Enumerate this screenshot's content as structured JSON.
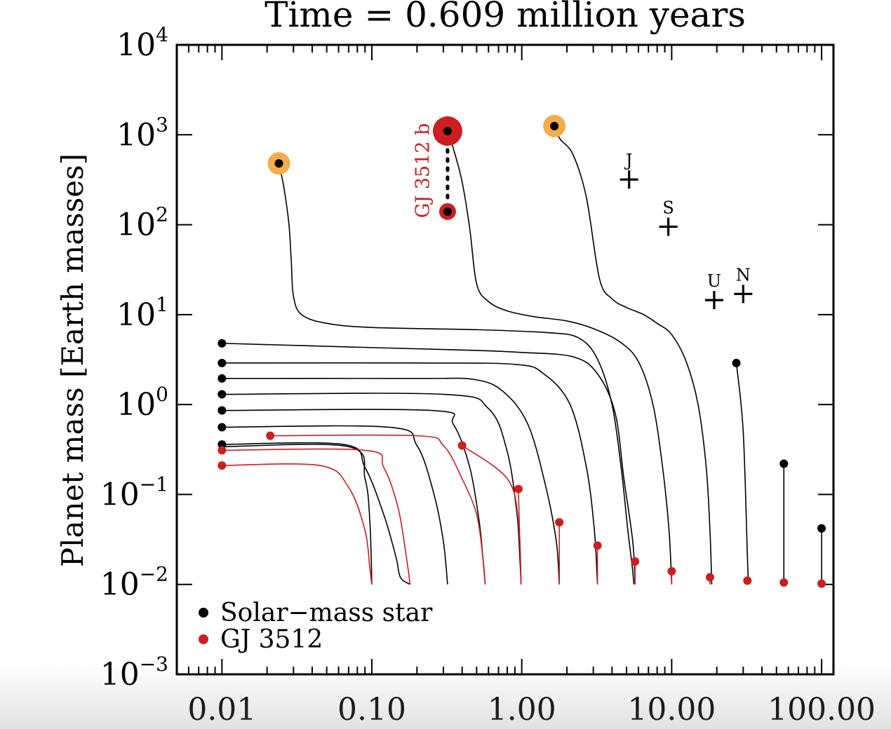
{
  "chart_data": {
    "type": "scatter",
    "title": "Time =  0.609 million years",
    "xlabel": "",
    "ylabel": "Planet mass [Earth masses]",
    "xscale": "log",
    "yscale": "log",
    "xlim": [
      0.005,
      120
    ],
    "ylim": [
      0.001,
      10000
    ],
    "x_ticks": [
      0.01,
      0.1,
      1,
      10,
      100
    ],
    "x_tick_labels": [
      "0.01",
      "0.10",
      "1.00",
      "10.00",
      "100.00"
    ],
    "y_ticks": [
      0.001,
      0.01,
      0.1,
      1,
      10,
      100,
      1000,
      10000
    ],
    "y_tick_labels": [
      {
        "base": "10",
        "exp": "−3"
      },
      {
        "base": "10",
        "exp": "−2"
      },
      {
        "base": "10",
        "exp": "−1"
      },
      {
        "base": "10",
        "exp": "0"
      },
      {
        "base": "10",
        "exp": "1"
      },
      {
        "base": "10",
        "exp": "2"
      },
      {
        "base": "10",
        "exp": "3"
      },
      {
        "base": "10",
        "exp": "4"
      }
    ],
    "legend": {
      "placement": "bottom-left",
      "entries": [
        {
          "label": "Solar−mass star",
          "color": "#000000"
        },
        {
          "label": "GJ 3512",
          "color": "#cc1f1f"
        }
      ]
    },
    "colors": {
      "solar": "#000000",
      "gj": "#cc1f1f",
      "halo_orange": "#f5ac4a",
      "halo_red": "#cc1f1f"
    },
    "series": [
      {
        "name": "Solar−mass star",
        "points": [
          {
            "x": 0.024,
            "y": 480,
            "halo": "orange"
          },
          {
            "x": 0.32,
            "y": 1100,
            "halo": "red"
          },
          {
            "x": 1.65,
            "y": 1250,
            "halo": "orange"
          },
          {
            "x": 0.32,
            "y": 140,
            "halo": "red-small"
          },
          {
            "x": 0.01,
            "y": 4.8
          },
          {
            "x": 0.01,
            "y": 2.9
          },
          {
            "x": 0.01,
            "y": 1.95
          },
          {
            "x": 0.01,
            "y": 1.3
          },
          {
            "x": 0.01,
            "y": 0.86
          },
          {
            "x": 0.01,
            "y": 0.56
          },
          {
            "x": 0.01,
            "y": 0.36
          },
          {
            "x": 27,
            "y": 2.9
          },
          {
            "x": 56,
            "y": 0.22
          },
          {
            "x": 100,
            "y": 0.042
          }
        ]
      },
      {
        "name": "GJ 3512",
        "points": [
          {
            "x": 0.021,
            "y": 0.45
          },
          {
            "x": 0.01,
            "y": 0.31
          },
          {
            "x": 0.01,
            "y": 0.21
          },
          {
            "x": 0.4,
            "y": 0.35
          },
          {
            "x": 0.95,
            "y": 0.115
          },
          {
            "x": 1.78,
            "y": 0.049
          },
          {
            "x": 3.2,
            "y": 0.027
          },
          {
            "x": 5.7,
            "y": 0.018
          },
          {
            "x": 10,
            "y": 0.014
          },
          {
            "x": 18,
            "y": 0.012
          },
          {
            "x": 32,
            "y": 0.011
          },
          {
            "x": 56,
            "y": 0.0105
          },
          {
            "x": 100,
            "y": 0.0102
          }
        ]
      }
    ],
    "tracks": [
      {
        "color": "black",
        "points": [
          [
            0.024,
            480
          ],
          [
            0.026,
            250
          ],
          [
            0.028,
            100
          ],
          [
            0.029,
            40
          ],
          [
            0.03,
            16
          ],
          [
            0.034,
            10
          ],
          [
            0.05,
            8
          ],
          [
            0.1,
            7.2
          ],
          [
            0.5,
            6.8
          ],
          [
            1.5,
            6.3
          ],
          [
            2.4,
            5.5
          ],
          [
            3.2,
            3.2
          ],
          [
            4,
            1
          ],
          [
            4.6,
            0.2
          ],
          [
            5.1,
            0.04
          ],
          [
            5.45,
            0.016
          ],
          [
            5.6,
            0.01
          ]
        ]
      },
      {
        "color": "black",
        "points": [
          [
            0.32,
            1100
          ],
          [
            0.35,
            700
          ],
          [
            0.4,
            300
          ],
          [
            0.45,
            90
          ],
          [
            0.5,
            22
          ],
          [
            0.6,
            14
          ],
          [
            0.8,
            11
          ],
          [
            1.2,
            9.5
          ],
          [
            2,
            8.5
          ],
          [
            3,
            7
          ],
          [
            4.5,
            5
          ],
          [
            6,
            3
          ],
          [
            7.5,
            1
          ],
          [
            8.7,
            0.2
          ],
          [
            9.6,
            0.04
          ],
          [
            10,
            0.01
          ]
        ]
      },
      {
        "color": "black",
        "points": [
          [
            1.65,
            1250
          ],
          [
            1.8,
            900
          ],
          [
            2.2,
            600
          ],
          [
            2.7,
            200
          ],
          [
            3.3,
            25
          ],
          [
            4,
            15
          ],
          [
            5,
            12
          ],
          [
            6.5,
            10
          ],
          [
            8,
            8
          ],
          [
            10,
            6
          ],
          [
            12.5,
            3
          ],
          [
            15,
            1
          ],
          [
            17,
            0.2
          ],
          [
            18,
            0.04
          ],
          [
            18.5,
            0.01
          ]
        ]
      },
      {
        "color": "black",
        "points": [
          [
            0.01,
            4.8
          ],
          [
            0.1,
            4.3
          ],
          [
            0.5,
            4.0
          ],
          [
            1,
            3.8
          ],
          [
            2.2,
            3.4
          ],
          [
            3.2,
            2.2
          ],
          [
            4.2,
            0.8
          ],
          [
            4.8,
            0.15
          ],
          [
            5.5,
            0.03
          ],
          [
            5.7,
            0.01
          ]
        ]
      },
      {
        "color": "black",
        "points": [
          [
            0.01,
            2.9
          ],
          [
            0.2,
            2.9
          ],
          [
            0.9,
            2.8
          ],
          [
            1.4,
            2.2
          ],
          [
            2.1,
            1
          ],
          [
            2.7,
            0.2
          ],
          [
            3.05,
            0.04
          ],
          [
            3.2,
            0.01
          ]
        ]
      },
      {
        "color": "black",
        "points": [
          [
            0.01,
            1.95
          ],
          [
            0.2,
            1.95
          ],
          [
            0.48,
            1.9
          ],
          [
            0.75,
            1.4
          ],
          [
            1.1,
            0.6
          ],
          [
            1.45,
            0.12
          ],
          [
            1.7,
            0.03
          ],
          [
            1.78,
            0.01
          ]
        ]
      },
      {
        "color": "black",
        "points": [
          [
            0.01,
            1.3
          ],
          [
            0.3,
            1.3
          ],
          [
            0.6,
            0.9
          ],
          [
            0.8,
            0.3
          ],
          [
            0.93,
            0.06
          ],
          [
            0.97,
            0.02
          ],
          [
            0.99,
            0.01
          ]
        ]
      },
      {
        "color": "black",
        "points": [
          [
            0.01,
            0.86
          ],
          [
            0.25,
            0.86
          ],
          [
            0.35,
            0.6
          ],
          [
            0.45,
            0.2
          ],
          [
            0.52,
            0.05
          ],
          [
            0.55,
            0.02
          ],
          [
            0.57,
            0.01
          ]
        ]
      },
      {
        "color": "black",
        "points": [
          [
            0.01,
            0.56
          ],
          [
            0.13,
            0.56
          ],
          [
            0.2,
            0.35
          ],
          [
            0.26,
            0.1
          ],
          [
            0.3,
            0.03
          ],
          [
            0.32,
            0.01
          ]
        ]
      },
      {
        "color": "black",
        "points": [
          [
            0.01,
            0.36
          ],
          [
            0.065,
            0.36
          ],
          [
            0.09,
            0.2
          ],
          [
            0.12,
            0.06
          ],
          [
            0.145,
            0.02
          ],
          [
            0.155,
            0.012
          ],
          [
            0.18,
            0.01
          ]
        ]
      },
      {
        "color": "black",
        "points": [
          [
            0.01,
            0.34
          ],
          [
            0.07,
            0.34
          ],
          [
            0.09,
            0.15
          ],
          [
            0.097,
            0.05
          ],
          [
            0.1,
            0.01
          ]
        ]
      },
      {
        "color": "black",
        "points": [
          [
            27,
            2.9
          ],
          [
            30,
            0.5
          ],
          [
            32,
            0.02
          ],
          [
            32.5,
            0.01
          ]
        ]
      },
      {
        "color": "black",
        "points": [
          [
            56,
            0.22
          ],
          [
            56,
            0.0105
          ]
        ]
      },
      {
        "color": "black",
        "points": [
          [
            100,
            0.042
          ],
          [
            100,
            0.0102
          ]
        ]
      },
      {
        "color": "red",
        "points": [
          [
            0.021,
            0.45
          ],
          [
            0.2,
            0.45
          ],
          [
            0.3,
            0.35
          ],
          [
            0.4,
            0.15
          ],
          [
            0.5,
            0.06
          ],
          [
            0.55,
            0.02
          ],
          [
            0.57,
            0.01
          ]
        ]
      },
      {
        "color": "red",
        "points": [
          [
            0.01,
            0.31
          ],
          [
            0.09,
            0.31
          ],
          [
            0.12,
            0.2
          ],
          [
            0.15,
            0.07
          ],
          [
            0.17,
            0.02
          ],
          [
            0.18,
            0.01
          ]
        ]
      },
      {
        "color": "red",
        "points": [
          [
            0.01,
            0.21
          ],
          [
            0.045,
            0.21
          ],
          [
            0.07,
            0.12
          ],
          [
            0.09,
            0.04
          ],
          [
            0.097,
            0.015
          ],
          [
            0.1,
            0.01
          ]
        ]
      },
      {
        "color": "red",
        "points": [
          [
            0.4,
            0.35
          ],
          [
            0.8,
            0.15
          ],
          [
            0.95,
            0.05
          ],
          [
            0.99,
            0.01
          ]
        ]
      },
      {
        "color": "red",
        "points": [
          [
            0.95,
            0.115
          ],
          [
            0.97,
            0.03
          ],
          [
            0.99,
            0.01
          ]
        ]
      },
      {
        "color": "red",
        "points": [
          [
            1.78,
            0.049
          ],
          [
            1.78,
            0.01
          ]
        ]
      },
      {
        "color": "red",
        "points": [
          [
            3.2,
            0.027
          ],
          [
            3.2,
            0.01
          ]
        ]
      },
      {
        "color": "red",
        "points": [
          [
            5.7,
            0.018
          ],
          [
            5.7,
            0.01
          ]
        ]
      },
      {
        "color": "red",
        "points": [
          [
            10,
            0.014
          ],
          [
            10,
            0.01
          ]
        ]
      },
      {
        "color": "red",
        "points": [
          [
            18,
            0.012
          ],
          [
            18,
            0.01
          ]
        ]
      }
    ],
    "dotted_connector": {
      "x": 0.32,
      "y_from": 140,
      "y_to": 1100
    },
    "annotations": [
      {
        "text": "GJ 3512 b",
        "x": 0.24,
        "y": 400,
        "color": "#cc1f1f",
        "rotation": "vertical"
      }
    ],
    "reference_markers": [
      {
        "label": "J",
        "x": 5.2,
        "y": 318
      },
      {
        "label": "S",
        "x": 9.5,
        "y": 95
      },
      {
        "label": "U",
        "x": 19.2,
        "y": 14.5
      },
      {
        "label": "N",
        "x": 30,
        "y": 17
      }
    ]
  }
}
